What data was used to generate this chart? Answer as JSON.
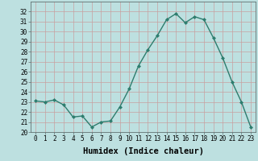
{
  "x": [
    0,
    1,
    2,
    3,
    4,
    5,
    6,
    7,
    8,
    9,
    10,
    11,
    12,
    13,
    14,
    15,
    16,
    17,
    18,
    19,
    20,
    21,
    22,
    23
  ],
  "y": [
    23.1,
    23.0,
    23.2,
    22.7,
    21.5,
    21.6,
    20.5,
    21.0,
    21.1,
    22.5,
    24.3,
    26.6,
    28.2,
    29.6,
    31.2,
    31.8,
    30.9,
    31.5,
    31.2,
    29.4,
    27.4,
    25.0,
    23.0,
    20.5
  ],
  "line_color": "#2e7d6e",
  "marker": "D",
  "marker_size": 2.0,
  "line_width": 1.0,
  "bg_color": "#bde0e0",
  "grid_color": "#c8a0a0",
  "xlabel": "Humidex (Indice chaleur)",
  "xlim": [
    -0.5,
    23.5
  ],
  "ylim": [
    20,
    33
  ],
  "yticks": [
    20,
    21,
    22,
    23,
    24,
    25,
    26,
    27,
    28,
    29,
    30,
    31,
    32
  ],
  "xticks": [
    0,
    1,
    2,
    3,
    4,
    5,
    6,
    7,
    8,
    9,
    10,
    11,
    12,
    13,
    14,
    15,
    16,
    17,
    18,
    19,
    20,
    21,
    22,
    23
  ],
  "tick_fontsize": 5.5,
  "xlabel_fontsize": 7.5
}
